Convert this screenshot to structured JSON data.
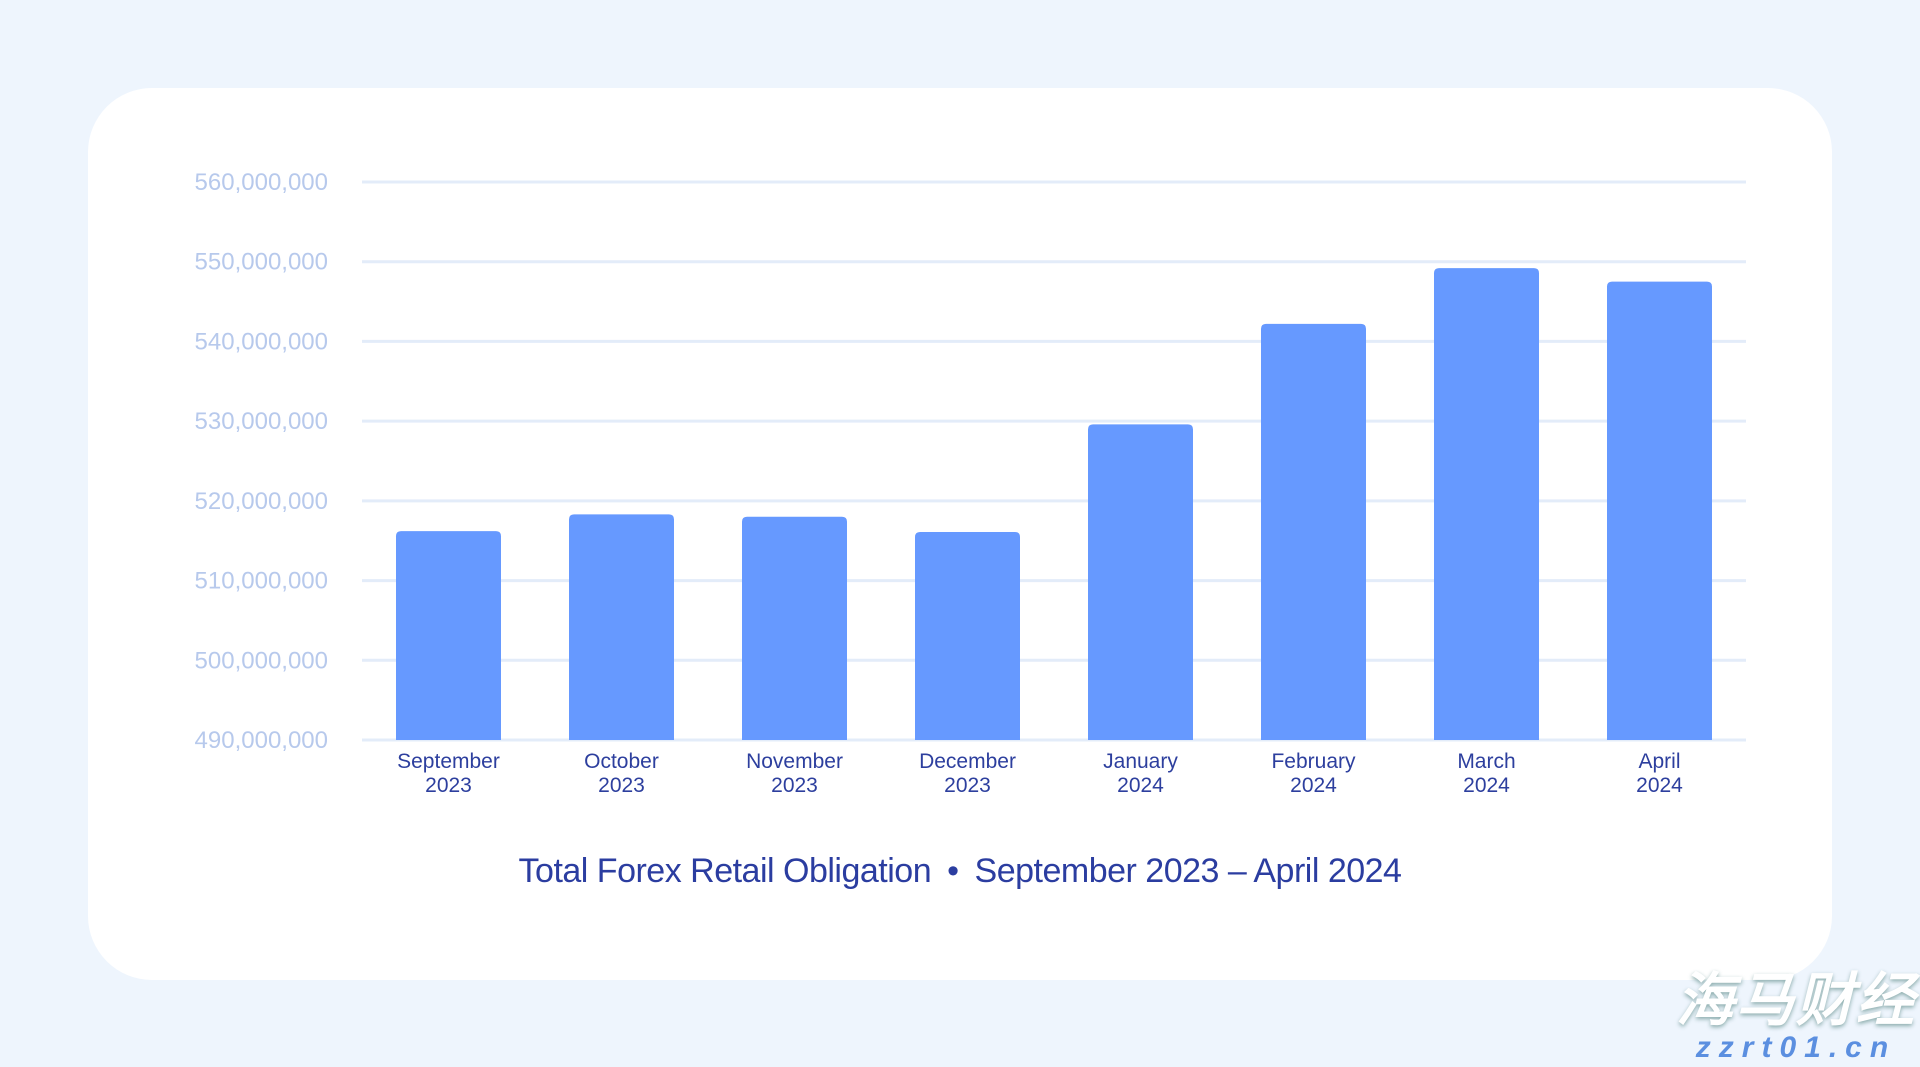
{
  "chart_data": {
    "type": "bar",
    "title": "Total Forex Retail Obligation",
    "subtitle": "September 2023 – April 2024",
    "separator": "•",
    "categories": [
      [
        "September",
        "2023"
      ],
      [
        "October",
        "2023"
      ],
      [
        "November",
        "2023"
      ],
      [
        "December",
        "2023"
      ],
      [
        "January",
        "2024"
      ],
      [
        "February",
        "2024"
      ],
      [
        "March",
        "2024"
      ],
      [
        "April",
        "2024"
      ]
    ],
    "values": [
      516200000,
      518300000,
      518000000,
      516100000,
      529600000,
      542200000,
      549200000,
      547500000
    ],
    "ylim": [
      490000000,
      560000000
    ],
    "yticks": [
      490000000,
      500000000,
      510000000,
      520000000,
      530000000,
      540000000,
      550000000,
      560000000
    ],
    "ytick_labels": [
      "490,000,000",
      "500,000,000",
      "510,000,000",
      "520,000,000",
      "530,000,000",
      "540,000,000",
      "550,000,000",
      "560,000,000"
    ],
    "xlabel": "",
    "ylabel": "",
    "grid": true,
    "colors": {
      "bar": "#6699ff",
      "grid": "#e3ecf9",
      "ytick": "#b7c9ec",
      "xtick": "#2d3f9e",
      "title": "#2b3da0"
    }
  },
  "watermark": {
    "text": "海马财经",
    "url": "zzrt01.cn"
  }
}
